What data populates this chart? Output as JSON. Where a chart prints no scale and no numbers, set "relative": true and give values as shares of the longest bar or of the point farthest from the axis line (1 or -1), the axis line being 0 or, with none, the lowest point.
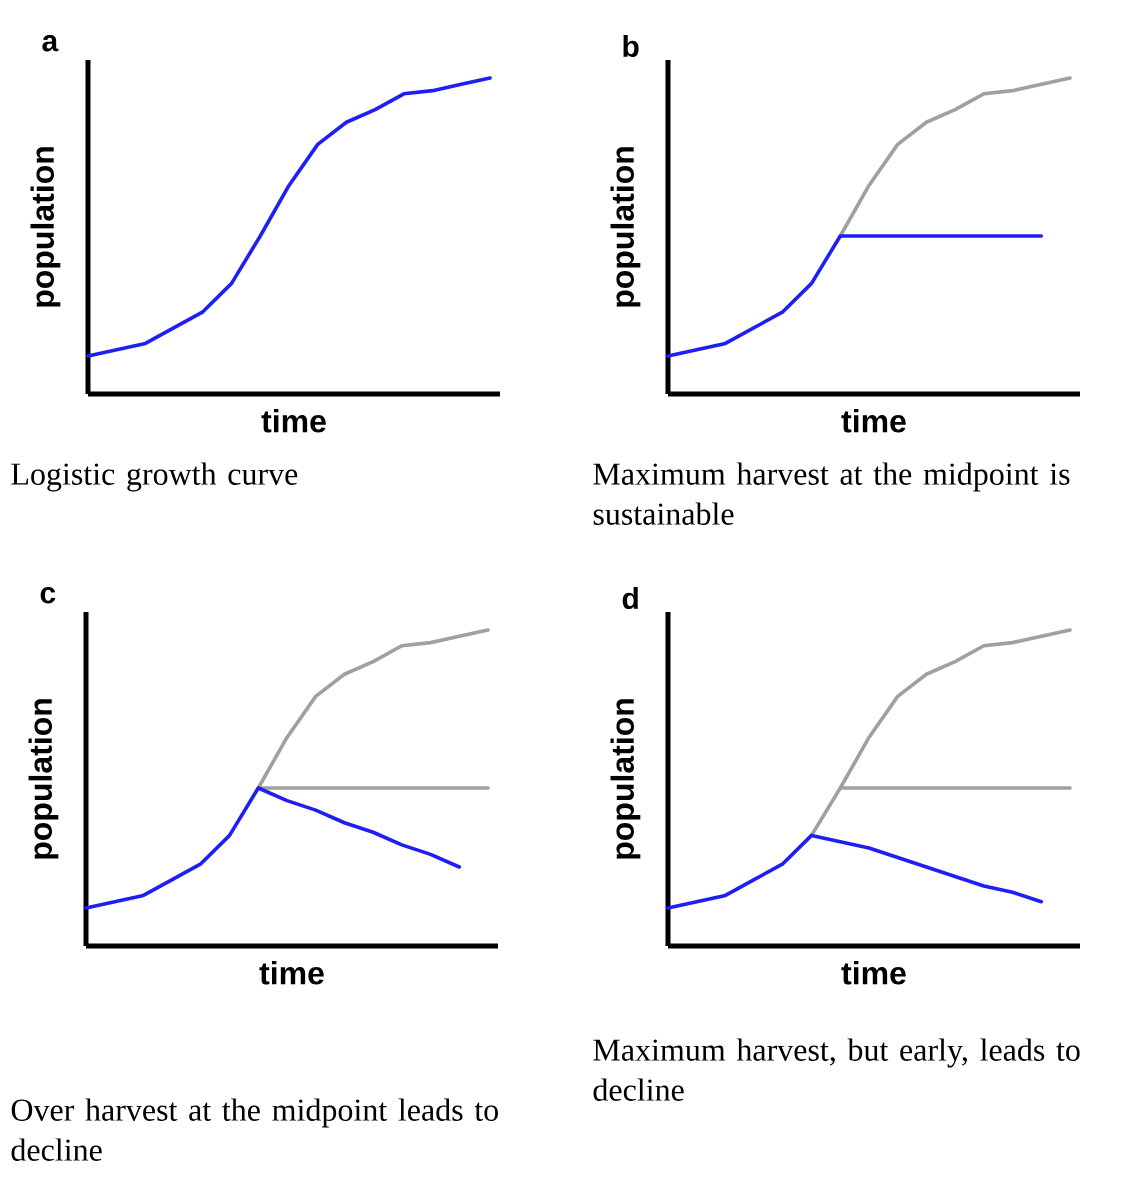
{
  "chart_data": [
    {
      "type": "line",
      "title": "a",
      "xlabel": "time",
      "ylabel": "population",
      "relative": true,
      "categories": [
        null,
        null,
        null,
        null,
        null,
        null,
        null,
        null,
        null,
        null,
        null,
        null,
        null,
        null,
        null
      ],
      "series": [
        {
          "color": "#1f1ff5",
          "values": [
            0.12,
            0.14,
            0.16,
            0.21,
            0.26,
            0.35,
            0.5,
            0.66,
            0.79,
            0.86,
            0.9,
            0.95,
            0.96,
            0.98,
            1
          ]
        }
      ],
      "annotations": [
        "Logistic growth curve"
      ]
    },
    {
      "type": "line",
      "title": "b",
      "xlabel": "time",
      "ylabel": "population",
      "relative": true,
      "categories": [
        null,
        null,
        null,
        null,
        null,
        null,
        null,
        null,
        null,
        null,
        null,
        null,
        null,
        null,
        null
      ],
      "series": [
        {
          "color": "#a0a0a0",
          "values": [
            null,
            null,
            null,
            null,
            null,
            null,
            0.5,
            0.66,
            0.79,
            0.86,
            0.9,
            0.95,
            0.96,
            0.98,
            1
          ]
        },
        {
          "color": "#1f1ff5",
          "values": [
            0.12,
            0.14,
            0.16,
            0.21,
            0.26,
            0.35,
            0.5,
            0.5,
            0.5,
            0.5,
            0.5,
            0.5,
            0.5,
            0.5,
            null
          ]
        }
      ],
      "annotations": [
        "Maximum harvest at the midpoint is sustainable"
      ]
    },
    {
      "type": "line",
      "title": "c",
      "xlabel": "time",
      "ylabel": "population",
      "relative": true,
      "categories": [
        null,
        null,
        null,
        null,
        null,
        null,
        null,
        null,
        null,
        null,
        null,
        null,
        null,
        null,
        null
      ],
      "series": [
        {
          "color": "#a0a0a0",
          "values": [
            null,
            null,
            null,
            null,
            null,
            null,
            0.5,
            0.66,
            0.79,
            0.86,
            0.9,
            0.95,
            0.96,
            0.98,
            1
          ]
        },
        {
          "color": "#a0a0a0",
          "values": [
            null,
            null,
            null,
            null,
            null,
            null,
            0.5,
            0.5,
            0.5,
            0.5,
            0.5,
            0.5,
            0.5,
            0.5,
            0.5
          ]
        },
        {
          "color": "#1f1ff5",
          "values": [
            0.12,
            0.14,
            0.16,
            0.21,
            0.26,
            0.35,
            0.5,
            0.46,
            0.43,
            0.39,
            0.36,
            0.32,
            0.29,
            0.25,
            null
          ]
        }
      ],
      "annotations": [
        "Over harvest at the midpoint leads to decline"
      ]
    },
    {
      "type": "line",
      "title": "d",
      "xlabel": "time",
      "ylabel": "population",
      "relative": true,
      "categories": [
        null,
        null,
        null,
        null,
        null,
        null,
        null,
        null,
        null,
        null,
        null,
        null,
        null,
        null,
        null
      ],
      "series": [
        {
          "color": "#a0a0a0",
          "values": [
            null,
            null,
            null,
            null,
            null,
            0.35,
            0.5,
            0.66,
            0.79,
            0.86,
            0.9,
            0.95,
            0.96,
            0.98,
            1
          ]
        },
        {
          "color": "#a0a0a0",
          "values": [
            null,
            null,
            null,
            null,
            null,
            null,
            0.5,
            0.5,
            0.5,
            0.5,
            0.5,
            0.5,
            0.5,
            0.5,
            0.5
          ]
        },
        {
          "color": "#1f1ff5",
          "values": [
            0.12,
            0.14,
            0.16,
            0.21,
            0.26,
            0.35,
            0.33,
            0.31,
            0.28,
            0.25,
            0.22,
            0.19,
            0.17,
            0.14,
            null
          ]
        }
      ],
      "annotations": [
        "Maximum harvest, but early, leads to decline"
      ]
    }
  ]
}
